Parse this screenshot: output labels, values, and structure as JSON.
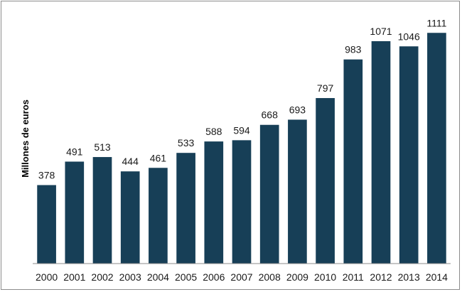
{
  "chart_data": {
    "type": "bar",
    "title": "",
    "xlabel": "",
    "ylabel": "Millones de euros",
    "categories": [
      "2000",
      "2001",
      "2002",
      "2003",
      "2004",
      "2005",
      "2006",
      "2007",
      "2008",
      "2009",
      "2010",
      "2011",
      "2012",
      "2013",
      "2014"
    ],
    "values": [
      378,
      491,
      513,
      444,
      461,
      533,
      588,
      594,
      668,
      693,
      797,
      983,
      1071,
      1046,
      1111
    ],
    "ylim": [
      0,
      1170
    ],
    "grid": false,
    "legend": "none",
    "data_labels": true,
    "bar_color": "#173f57"
  }
}
